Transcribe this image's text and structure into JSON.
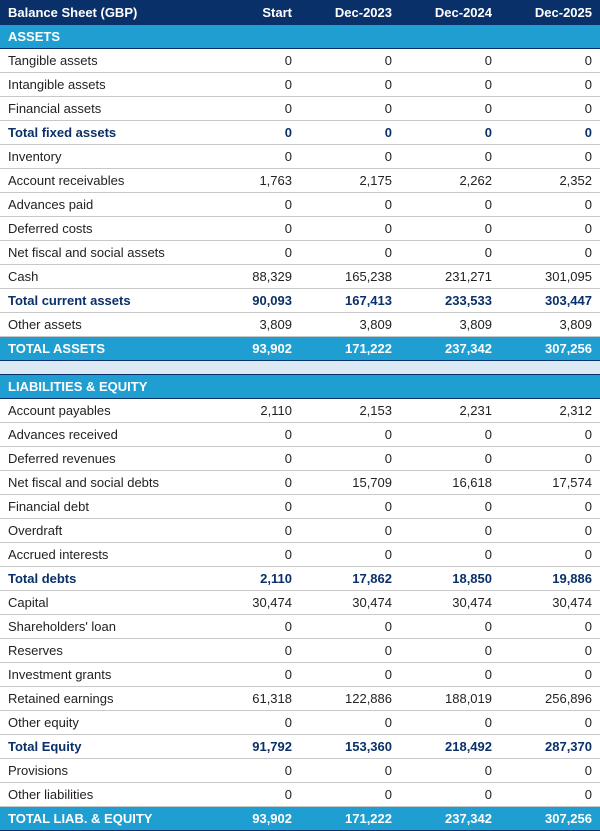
{
  "title": "Balance Sheet (GBP)",
  "columns": [
    "Start",
    "Dec-2023",
    "Dec-2024",
    "Dec-2025"
  ],
  "colors": {
    "header_bg": "#0a3069",
    "section_bg": "#1e9ed1",
    "spacer_bg": "#dbe9f4",
    "text_bold": "#0a3069",
    "row_border": "#c8c8c8"
  },
  "sections": [
    {
      "title": "ASSETS",
      "rows": [
        {
          "type": "line",
          "label": "Tangible assets",
          "values": [
            "0",
            "0",
            "0",
            "0"
          ]
        },
        {
          "type": "line",
          "label": "Intangible assets",
          "values": [
            "0",
            "0",
            "0",
            "0"
          ]
        },
        {
          "type": "line",
          "label": "Financial assets",
          "values": [
            "0",
            "0",
            "0",
            "0"
          ]
        },
        {
          "type": "bold",
          "label": "Total fixed assets",
          "values": [
            "0",
            "0",
            "0",
            "0"
          ]
        },
        {
          "type": "line",
          "label": "Inventory",
          "values": [
            "0",
            "0",
            "0",
            "0"
          ]
        },
        {
          "type": "line",
          "label": "Account receivables",
          "values": [
            "1,763",
            "2,175",
            "2,262",
            "2,352"
          ]
        },
        {
          "type": "line",
          "label": "Advances paid",
          "values": [
            "0",
            "0",
            "0",
            "0"
          ]
        },
        {
          "type": "line",
          "label": "Deferred costs",
          "values": [
            "0",
            "0",
            "0",
            "0"
          ]
        },
        {
          "type": "line",
          "label": "Net fiscal and social assets",
          "values": [
            "0",
            "0",
            "0",
            "0"
          ]
        },
        {
          "type": "line",
          "label": "Cash",
          "values": [
            "88,329",
            "165,238",
            "231,271",
            "301,095"
          ]
        },
        {
          "type": "bold",
          "label": "Total current assets",
          "values": [
            "90,093",
            "167,413",
            "233,533",
            "303,447"
          ]
        },
        {
          "type": "line",
          "label": "Other assets",
          "values": [
            "3,809",
            "3,809",
            "3,809",
            "3,809"
          ]
        }
      ],
      "total": {
        "label": "TOTAL ASSETS",
        "values": [
          "93,902",
          "171,222",
          "237,342",
          "307,256"
        ]
      },
      "spacer_after": true
    },
    {
      "title": "LIABILITIES & EQUITY",
      "rows": [
        {
          "type": "line",
          "label": "Account payables",
          "values": [
            "2,110",
            "2,153",
            "2,231",
            "2,312"
          ]
        },
        {
          "type": "line",
          "label": "Advances received",
          "values": [
            "0",
            "0",
            "0",
            "0"
          ]
        },
        {
          "type": "line",
          "label": "Deferred revenues",
          "values": [
            "0",
            "0",
            "0",
            "0"
          ]
        },
        {
          "type": "line",
          "label": "Net fiscal and social debts",
          "values": [
            "0",
            "15,709",
            "16,618",
            "17,574"
          ]
        },
        {
          "type": "line",
          "label": "Financial debt",
          "values": [
            "0",
            "0",
            "0",
            "0"
          ]
        },
        {
          "type": "line",
          "label": "Overdraft",
          "values": [
            "0",
            "0",
            "0",
            "0"
          ]
        },
        {
          "type": "line",
          "label": "Accrued interests",
          "values": [
            "0",
            "0",
            "0",
            "0"
          ]
        },
        {
          "type": "bold",
          "label": "Total debts",
          "values": [
            "2,110",
            "17,862",
            "18,850",
            "19,886"
          ]
        },
        {
          "type": "line",
          "label": "Capital",
          "values": [
            "30,474",
            "30,474",
            "30,474",
            "30,474"
          ]
        },
        {
          "type": "line",
          "label": "Shareholders' loan",
          "values": [
            "0",
            "0",
            "0",
            "0"
          ]
        },
        {
          "type": "line",
          "label": "Reserves",
          "values": [
            "0",
            "0",
            "0",
            "0"
          ]
        },
        {
          "type": "line",
          "label": "Investment grants",
          "values": [
            "0",
            "0",
            "0",
            "0"
          ]
        },
        {
          "type": "line",
          "label": "Retained earnings",
          "values": [
            "61,318",
            "122,886",
            "188,019",
            "256,896"
          ]
        },
        {
          "type": "line",
          "label": "Other equity",
          "values": [
            "0",
            "0",
            "0",
            "0"
          ]
        },
        {
          "type": "bold",
          "label": "Total Equity",
          "values": [
            "91,792",
            "153,360",
            "218,492",
            "287,370"
          ]
        },
        {
          "type": "line",
          "label": "Provisions",
          "values": [
            "0",
            "0",
            "0",
            "0"
          ]
        },
        {
          "type": "line",
          "label": "Other liabilities",
          "values": [
            "0",
            "0",
            "0",
            "0"
          ]
        }
      ],
      "total": {
        "label": "TOTAL LIAB. & EQUITY",
        "values": [
          "93,902",
          "171,222",
          "237,342",
          "307,256"
        ]
      },
      "spacer_after": false
    }
  ]
}
